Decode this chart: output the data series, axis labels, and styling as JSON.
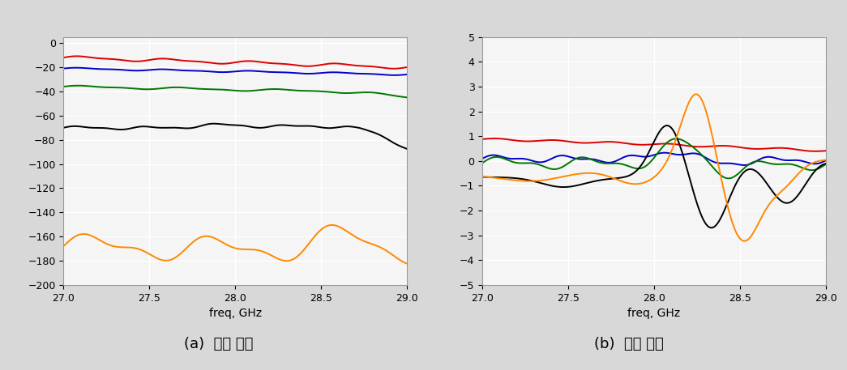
{
  "freq_start": 27.0,
  "freq_end": 29.0,
  "freq_points": 300,
  "plot_a": {
    "title": "(a)  위상 변화",
    "xlabel": "freq, GHz",
    "ylim": [
      -200,
      5
    ],
    "yticks": [
      0,
      -20,
      -40,
      -60,
      -80,
      -100,
      -120,
      -140,
      -160,
      -180,
      -200
    ],
    "xlim": [
      27.0,
      29.0
    ],
    "xticks": [
      27.0,
      27.5,
      28.0,
      28.5,
      29.0
    ],
    "colors": [
      "#dd0000",
      "#0000cc",
      "#007700",
      "#000000",
      "#ff8800"
    ]
  },
  "plot_b": {
    "title": "(b)  진폭 오차",
    "xlabel": "freq, GHz",
    "ylim": [
      -5,
      5
    ],
    "yticks": [
      -5,
      -4,
      -3,
      -2,
      -1,
      0,
      1,
      2,
      3,
      4,
      5
    ],
    "xlim": [
      27.0,
      29.0
    ],
    "xticks": [
      27.0,
      27.5,
      28.0,
      28.5,
      29.0
    ],
    "colors": [
      "#dd0000",
      "#0000cc",
      "#007700",
      "#000000",
      "#ff8800"
    ]
  },
  "fig_bg": "#d8d8d8",
  "plot_bg": "#f5f5f5",
  "grid_color": "#ffffff",
  "font_size_tick": 9,
  "font_size_xlabel": 10,
  "font_size_caption": 13
}
